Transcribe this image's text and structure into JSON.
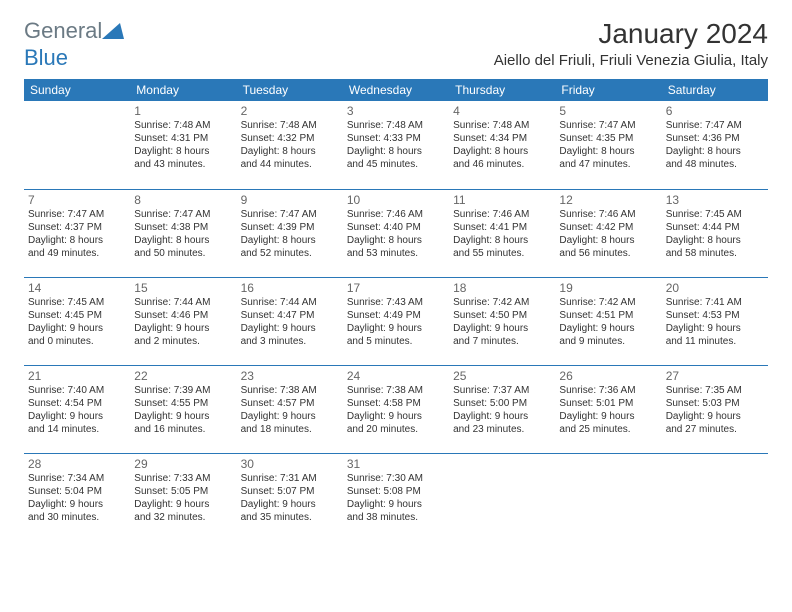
{
  "logo": {
    "text_general": "General",
    "text_blue": "Blue",
    "icon_color": "#2a78b8"
  },
  "title": "January 2024",
  "location": "Aiello del Friuli, Friuli Venezia Giulia, Italy",
  "header_bg": "#2a78b8",
  "header_fg": "#ffffff",
  "divider_color": "#2a78b8",
  "text_color": "#333333",
  "background_color": "#ffffff",
  "fontsize_title": 28,
  "fontsize_location": 15,
  "fontsize_header": 12,
  "fontsize_daynum": 12,
  "fontsize_dayinfo": 10,
  "day_headers": [
    "Sunday",
    "Monday",
    "Tuesday",
    "Wednesday",
    "Thursday",
    "Friday",
    "Saturday"
  ],
  "weeks": [
    [
      null,
      {
        "n": "1",
        "sr": "Sunrise: 7:48 AM",
        "ss": "Sunset: 4:31 PM",
        "d1": "Daylight: 8 hours",
        "d2": "and 43 minutes."
      },
      {
        "n": "2",
        "sr": "Sunrise: 7:48 AM",
        "ss": "Sunset: 4:32 PM",
        "d1": "Daylight: 8 hours",
        "d2": "and 44 minutes."
      },
      {
        "n": "3",
        "sr": "Sunrise: 7:48 AM",
        "ss": "Sunset: 4:33 PM",
        "d1": "Daylight: 8 hours",
        "d2": "and 45 minutes."
      },
      {
        "n": "4",
        "sr": "Sunrise: 7:48 AM",
        "ss": "Sunset: 4:34 PM",
        "d1": "Daylight: 8 hours",
        "d2": "and 46 minutes."
      },
      {
        "n": "5",
        "sr": "Sunrise: 7:47 AM",
        "ss": "Sunset: 4:35 PM",
        "d1": "Daylight: 8 hours",
        "d2": "and 47 minutes."
      },
      {
        "n": "6",
        "sr": "Sunrise: 7:47 AM",
        "ss": "Sunset: 4:36 PM",
        "d1": "Daylight: 8 hours",
        "d2": "and 48 minutes."
      }
    ],
    [
      {
        "n": "7",
        "sr": "Sunrise: 7:47 AM",
        "ss": "Sunset: 4:37 PM",
        "d1": "Daylight: 8 hours",
        "d2": "and 49 minutes."
      },
      {
        "n": "8",
        "sr": "Sunrise: 7:47 AM",
        "ss": "Sunset: 4:38 PM",
        "d1": "Daylight: 8 hours",
        "d2": "and 50 minutes."
      },
      {
        "n": "9",
        "sr": "Sunrise: 7:47 AM",
        "ss": "Sunset: 4:39 PM",
        "d1": "Daylight: 8 hours",
        "d2": "and 52 minutes."
      },
      {
        "n": "10",
        "sr": "Sunrise: 7:46 AM",
        "ss": "Sunset: 4:40 PM",
        "d1": "Daylight: 8 hours",
        "d2": "and 53 minutes."
      },
      {
        "n": "11",
        "sr": "Sunrise: 7:46 AM",
        "ss": "Sunset: 4:41 PM",
        "d1": "Daylight: 8 hours",
        "d2": "and 55 minutes."
      },
      {
        "n": "12",
        "sr": "Sunrise: 7:46 AM",
        "ss": "Sunset: 4:42 PM",
        "d1": "Daylight: 8 hours",
        "d2": "and 56 minutes."
      },
      {
        "n": "13",
        "sr": "Sunrise: 7:45 AM",
        "ss": "Sunset: 4:44 PM",
        "d1": "Daylight: 8 hours",
        "d2": "and 58 minutes."
      }
    ],
    [
      {
        "n": "14",
        "sr": "Sunrise: 7:45 AM",
        "ss": "Sunset: 4:45 PM",
        "d1": "Daylight: 9 hours",
        "d2": "and 0 minutes."
      },
      {
        "n": "15",
        "sr": "Sunrise: 7:44 AM",
        "ss": "Sunset: 4:46 PM",
        "d1": "Daylight: 9 hours",
        "d2": "and 2 minutes."
      },
      {
        "n": "16",
        "sr": "Sunrise: 7:44 AM",
        "ss": "Sunset: 4:47 PM",
        "d1": "Daylight: 9 hours",
        "d2": "and 3 minutes."
      },
      {
        "n": "17",
        "sr": "Sunrise: 7:43 AM",
        "ss": "Sunset: 4:49 PM",
        "d1": "Daylight: 9 hours",
        "d2": "and 5 minutes."
      },
      {
        "n": "18",
        "sr": "Sunrise: 7:42 AM",
        "ss": "Sunset: 4:50 PM",
        "d1": "Daylight: 9 hours",
        "d2": "and 7 minutes."
      },
      {
        "n": "19",
        "sr": "Sunrise: 7:42 AM",
        "ss": "Sunset: 4:51 PM",
        "d1": "Daylight: 9 hours",
        "d2": "and 9 minutes."
      },
      {
        "n": "20",
        "sr": "Sunrise: 7:41 AM",
        "ss": "Sunset: 4:53 PM",
        "d1": "Daylight: 9 hours",
        "d2": "and 11 minutes."
      }
    ],
    [
      {
        "n": "21",
        "sr": "Sunrise: 7:40 AM",
        "ss": "Sunset: 4:54 PM",
        "d1": "Daylight: 9 hours",
        "d2": "and 14 minutes."
      },
      {
        "n": "22",
        "sr": "Sunrise: 7:39 AM",
        "ss": "Sunset: 4:55 PM",
        "d1": "Daylight: 9 hours",
        "d2": "and 16 minutes."
      },
      {
        "n": "23",
        "sr": "Sunrise: 7:38 AM",
        "ss": "Sunset: 4:57 PM",
        "d1": "Daylight: 9 hours",
        "d2": "and 18 minutes."
      },
      {
        "n": "24",
        "sr": "Sunrise: 7:38 AM",
        "ss": "Sunset: 4:58 PM",
        "d1": "Daylight: 9 hours",
        "d2": "and 20 minutes."
      },
      {
        "n": "25",
        "sr": "Sunrise: 7:37 AM",
        "ss": "Sunset: 5:00 PM",
        "d1": "Daylight: 9 hours",
        "d2": "and 23 minutes."
      },
      {
        "n": "26",
        "sr": "Sunrise: 7:36 AM",
        "ss": "Sunset: 5:01 PM",
        "d1": "Daylight: 9 hours",
        "d2": "and 25 minutes."
      },
      {
        "n": "27",
        "sr": "Sunrise: 7:35 AM",
        "ss": "Sunset: 5:03 PM",
        "d1": "Daylight: 9 hours",
        "d2": "and 27 minutes."
      }
    ],
    [
      {
        "n": "28",
        "sr": "Sunrise: 7:34 AM",
        "ss": "Sunset: 5:04 PM",
        "d1": "Daylight: 9 hours",
        "d2": "and 30 minutes."
      },
      {
        "n": "29",
        "sr": "Sunrise: 7:33 AM",
        "ss": "Sunset: 5:05 PM",
        "d1": "Daylight: 9 hours",
        "d2": "and 32 minutes."
      },
      {
        "n": "30",
        "sr": "Sunrise: 7:31 AM",
        "ss": "Sunset: 5:07 PM",
        "d1": "Daylight: 9 hours",
        "d2": "and 35 minutes."
      },
      {
        "n": "31",
        "sr": "Sunrise: 7:30 AM",
        "ss": "Sunset: 5:08 PM",
        "d1": "Daylight: 9 hours",
        "d2": "and 38 minutes."
      },
      null,
      null,
      null
    ]
  ]
}
